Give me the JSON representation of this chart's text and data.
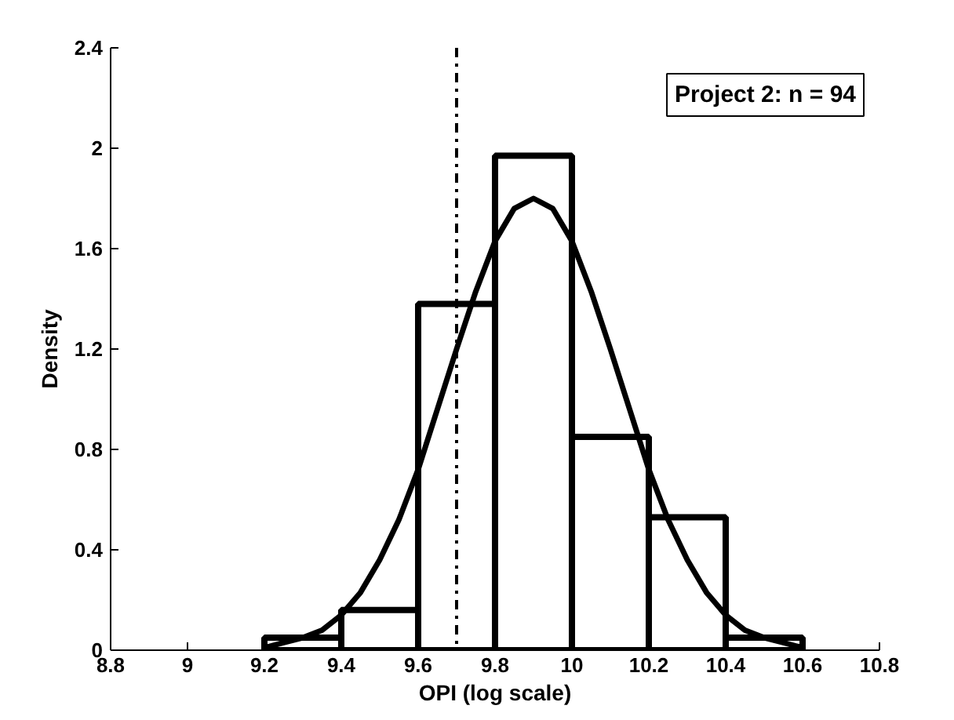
{
  "chart_data": {
    "type": "histogram",
    "xlabel": "OPI (log scale)",
    "ylabel": "Density",
    "bins": [
      9.2,
      9.4,
      9.6,
      9.8,
      10.0,
      10.2,
      10.4,
      10.6
    ],
    "values": [
      0.05,
      0.16,
      1.38,
      1.97,
      0.85,
      0.53,
      0.05
    ],
    "color": "#000000",
    "series": [
      {
        "type": "line",
        "color": "#000000",
        "x": [
          9.2,
          9.25,
          9.3,
          9.35,
          9.4,
          9.45,
          9.5,
          9.55,
          9.6,
          9.65,
          9.7,
          9.75,
          9.8,
          9.85,
          9.9,
          9.95,
          10.0,
          10.05,
          10.1,
          10.15,
          10.2,
          10.25,
          10.3,
          10.35,
          10.4,
          10.45,
          10.5,
          10.55,
          10.6
        ],
        "values": [
          0.01,
          0.03,
          0.05,
          0.08,
          0.14,
          0.23,
          0.36,
          0.52,
          0.72,
          0.96,
          1.2,
          1.43,
          1.63,
          1.76,
          1.8,
          1.76,
          1.63,
          1.43,
          1.2,
          0.96,
          0.72,
          0.52,
          0.36,
          0.23,
          0.14,
          0.08,
          0.05,
          0.03,
          0.01
        ]
      }
    ],
    "ref_lines": [
      {
        "axis": "x",
        "value": 9.7,
        "line_style": "dashdot",
        "color": "#000000"
      }
    ],
    "annotations": [
      "Project 2: n = 94"
    ],
    "xlim": [
      8.8,
      10.8
    ],
    "xticks": [
      8.8,
      9,
      9.2,
      9.4,
      9.6,
      9.8,
      10,
      10.2,
      10.4,
      10.6,
      10.8
    ],
    "ylim": [
      0,
      2.4
    ],
    "yticks": [
      0,
      0.4,
      0.8,
      1.2,
      1.6,
      2,
      2.4
    ],
    "grid": false
  }
}
